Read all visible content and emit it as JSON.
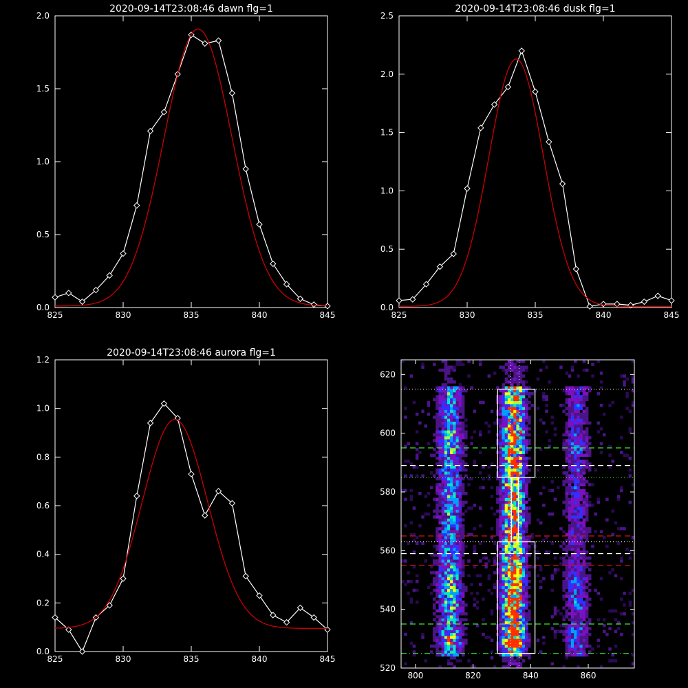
{
  "chart_data": [
    {
      "type": "line",
      "title": "2020-09-14T23:08:46 dawn flg=1",
      "xlim": [
        825,
        845
      ],
      "ylim": [
        0,
        2.0
      ],
      "xticks": [
        825,
        830,
        835,
        840,
        845
      ],
      "yticks": [
        0.0,
        0.5,
        1.0,
        1.5,
        2.0
      ],
      "ytick_labels": [
        "0.0",
        "0.5",
        "1.0",
        "1.5",
        "2.0"
      ],
      "series": [
        {
          "role": "measured",
          "color": "#ffffff",
          "marker": "diamond",
          "x": [
            825,
            826,
            827,
            828,
            829,
            830,
            831,
            832,
            833,
            834,
            835,
            836,
            837,
            838,
            839,
            840,
            841,
            842,
            843,
            844,
            845
          ],
          "y": [
            0.07,
            0.1,
            0.04,
            0.12,
            0.22,
            0.37,
            0.7,
            1.21,
            1.34,
            1.6,
            1.87,
            1.81,
            1.83,
            1.47,
            0.95,
            0.57,
            0.3,
            0.16,
            0.06,
            0.02,
            0.01
          ]
        },
        {
          "role": "fit",
          "color": "#cc0000",
          "gauss": {
            "amp": 1.9,
            "mu": 835.5,
            "sigma": 2.5,
            "base": 0.01
          }
        }
      ]
    },
    {
      "type": "line",
      "title": "2020-09-14T23:08:46 dusk flg=1",
      "xlim": [
        825,
        845
      ],
      "ylim": [
        0,
        2.5
      ],
      "xticks": [
        825,
        830,
        835,
        840,
        845
      ],
      "yticks": [
        0.0,
        0.5,
        1.0,
        1.5,
        2.0,
        2.5
      ],
      "ytick_labels": [
        "0.0",
        "0.5",
        "1.0",
        "1.5",
        "2.0",
        "2.5"
      ],
      "series": [
        {
          "role": "measured",
          "color": "#ffffff",
          "marker": "diamond",
          "x": [
            825,
            826,
            827,
            828,
            829,
            830,
            831,
            832,
            833,
            834,
            835,
            836,
            837,
            838,
            839,
            840,
            841,
            842,
            843,
            844,
            845
          ],
          "y": [
            0.06,
            0.07,
            0.2,
            0.35,
            0.46,
            1.02,
            1.54,
            1.74,
            1.89,
            2.2,
            1.85,
            1.42,
            1.06,
            0.33,
            0.01,
            0.03,
            0.03,
            0.02,
            0.05,
            0.1,
            0.06
          ]
        },
        {
          "role": "fit",
          "color": "#cc0000",
          "gauss": {
            "amp": 2.12,
            "mu": 833.6,
            "sigma": 2.0,
            "base": 0.01
          }
        }
      ]
    },
    {
      "type": "line",
      "title": "2020-09-14T23:08:46 aurora flg=1",
      "xlim": [
        825,
        845
      ],
      "ylim": [
        0,
        1.2
      ],
      "xticks": [
        825,
        830,
        835,
        840,
        845
      ],
      "yticks": [
        0.0,
        0.2,
        0.4,
        0.6,
        0.8,
        1.0,
        1.2
      ],
      "ytick_labels": [
        "0.0",
        "0.2",
        "0.4",
        "0.6",
        "0.8",
        "1.0",
        "1.2"
      ],
      "series": [
        {
          "role": "measured",
          "color": "#ffffff",
          "marker": "diamond",
          "x": [
            825,
            826,
            827,
            828,
            829,
            830,
            831,
            832,
            833,
            834,
            835,
            836,
            837,
            838,
            839,
            840,
            841,
            842,
            843,
            844,
            845
          ],
          "y": [
            0.14,
            0.09,
            0.0,
            0.14,
            0.19,
            0.3,
            0.64,
            0.94,
            1.02,
            0.96,
            0.73,
            0.56,
            0.66,
            0.61,
            0.31,
            0.23,
            0.15,
            0.12,
            0.18,
            0.14,
            0.09
          ]
        },
        {
          "role": "fit",
          "color": "#cc0000",
          "gauss": {
            "amp": 0.86,
            "mu": 833.8,
            "sigma": 2.4,
            "base": 0.095
          }
        }
      ]
    },
    {
      "type": "heatmap",
      "title": "",
      "xlim": [
        795,
        876
      ],
      "ylim": [
        520,
        625
      ],
      "xticks": [
        800,
        820,
        840,
        860
      ],
      "yticks": [
        520,
        540,
        560,
        580,
        600,
        620
      ],
      "palette": [
        "#2a0a55",
        "#4a1488",
        "#7a10c0",
        "#3030ff",
        "#00a0ff",
        "#00e8c8",
        "#a0ff40",
        "#ffff00",
        "#ff3000"
      ],
      "columns": [
        {
          "center": 812,
          "width": 12,
          "strength": 0.55
        },
        {
          "center": 834,
          "width": 11,
          "strength": 1.0
        },
        {
          "center": 856,
          "width": 12,
          "strength": 0.35
        }
      ],
      "hot_rows": [
        [
          540,
          553,
          0.25
        ],
        [
          593,
          600,
          0.2
        ],
        [
          527,
          533,
          0.35
        ]
      ],
      "lines": [
        {
          "style": "dotted",
          "color": "#ffffff",
          "y": 615
        },
        {
          "style": "dashed",
          "color": "#33ee33",
          "y": 595
        },
        {
          "style": "dashed",
          "color": "#ffffff",
          "y": 589
        },
        {
          "style": "dotted",
          "color": "#33ee33",
          "y": 585
        },
        {
          "style": "dashed",
          "color": "#dd1111",
          "y": 565
        },
        {
          "style": "dotted",
          "color": "#ffffff",
          "y": 563
        },
        {
          "style": "dashed",
          "color": "#ffffff",
          "y": 559
        },
        {
          "style": "dashed",
          "color": "#dd1111",
          "y": 555
        },
        {
          "style": "dashed",
          "color": "#33ee33",
          "y": 535
        },
        {
          "style": "dashdot",
          "color": "#33ee33",
          "y": 525
        }
      ],
      "vlines": [
        {
          "style": "dotted",
          "color": "#ffffff",
          "x": 833
        },
        {
          "style": "dotted",
          "color": "#ffffff",
          "x": 836
        }
      ],
      "boxes": [
        {
          "color": "#ffffff",
          "x0": 828.5,
          "x1": 841.5,
          "y0": 585,
          "y1": 615
        },
        {
          "color": "#ffffff",
          "x0": 828.5,
          "x1": 841.5,
          "y0": 525,
          "y1": 563
        },
        {
          "color": "#ffffff",
          "x0": 833.3,
          "x1": 835.7,
          "y0": 563,
          "y1": 585
        }
      ]
    }
  ]
}
